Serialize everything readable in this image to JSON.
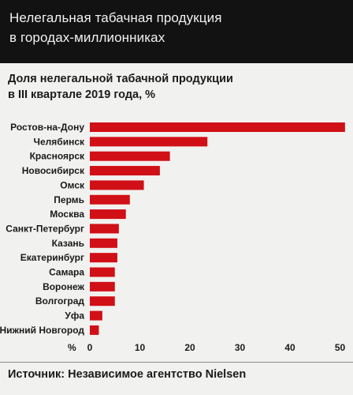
{
  "header": {
    "title_line1": "Нелегальная табачная продукция",
    "title_line2": "в городах-миллионниках"
  },
  "subtitle": {
    "line1": "Доля нелегальной табачной продукции",
    "line2": "в III квартале 2019 года, %"
  },
  "footer": {
    "source": "Источник: Независимое агентство Nielsen"
  },
  "chart_data": {
    "type": "bar",
    "orientation": "horizontal",
    "categories": [
      "Ростов-на-Дону",
      "Челябинск",
      "Красноярск",
      "Новосибирск",
      "Омск",
      "Пермь",
      "Москва",
      "Санкт-Петербург",
      "Казань",
      "Екатеринбург",
      "Самара",
      "Воронеж",
      "Волгоград",
      "Уфа",
      "Нижний Новгород"
    ],
    "values": [
      51,
      23.5,
      16,
      14,
      10.8,
      8,
      7.2,
      5.8,
      5.5,
      5.5,
      5,
      5,
      5,
      2.5,
      1.8
    ],
    "xlabel": "%",
    "xticks": [
      0,
      10,
      20,
      30,
      40,
      50
    ],
    "xlim": [
      0,
      50
    ],
    "bar_color": "#d10f16",
    "grid": false
  }
}
